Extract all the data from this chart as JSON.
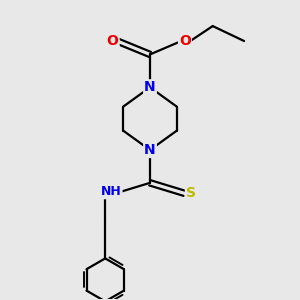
{
  "bg_color": "#e8e8e8",
  "atom_colors": {
    "N": "#0000ee",
    "O": "#ee0000",
    "S": "#bbbb00",
    "C": "#000000",
    "H": "#444444"
  },
  "bond_color": "#000000",
  "bond_width": 1.6,
  "font_size_atom": 10,
  "xlim": [
    0,
    10
  ],
  "ylim": [
    0,
    10
  ]
}
